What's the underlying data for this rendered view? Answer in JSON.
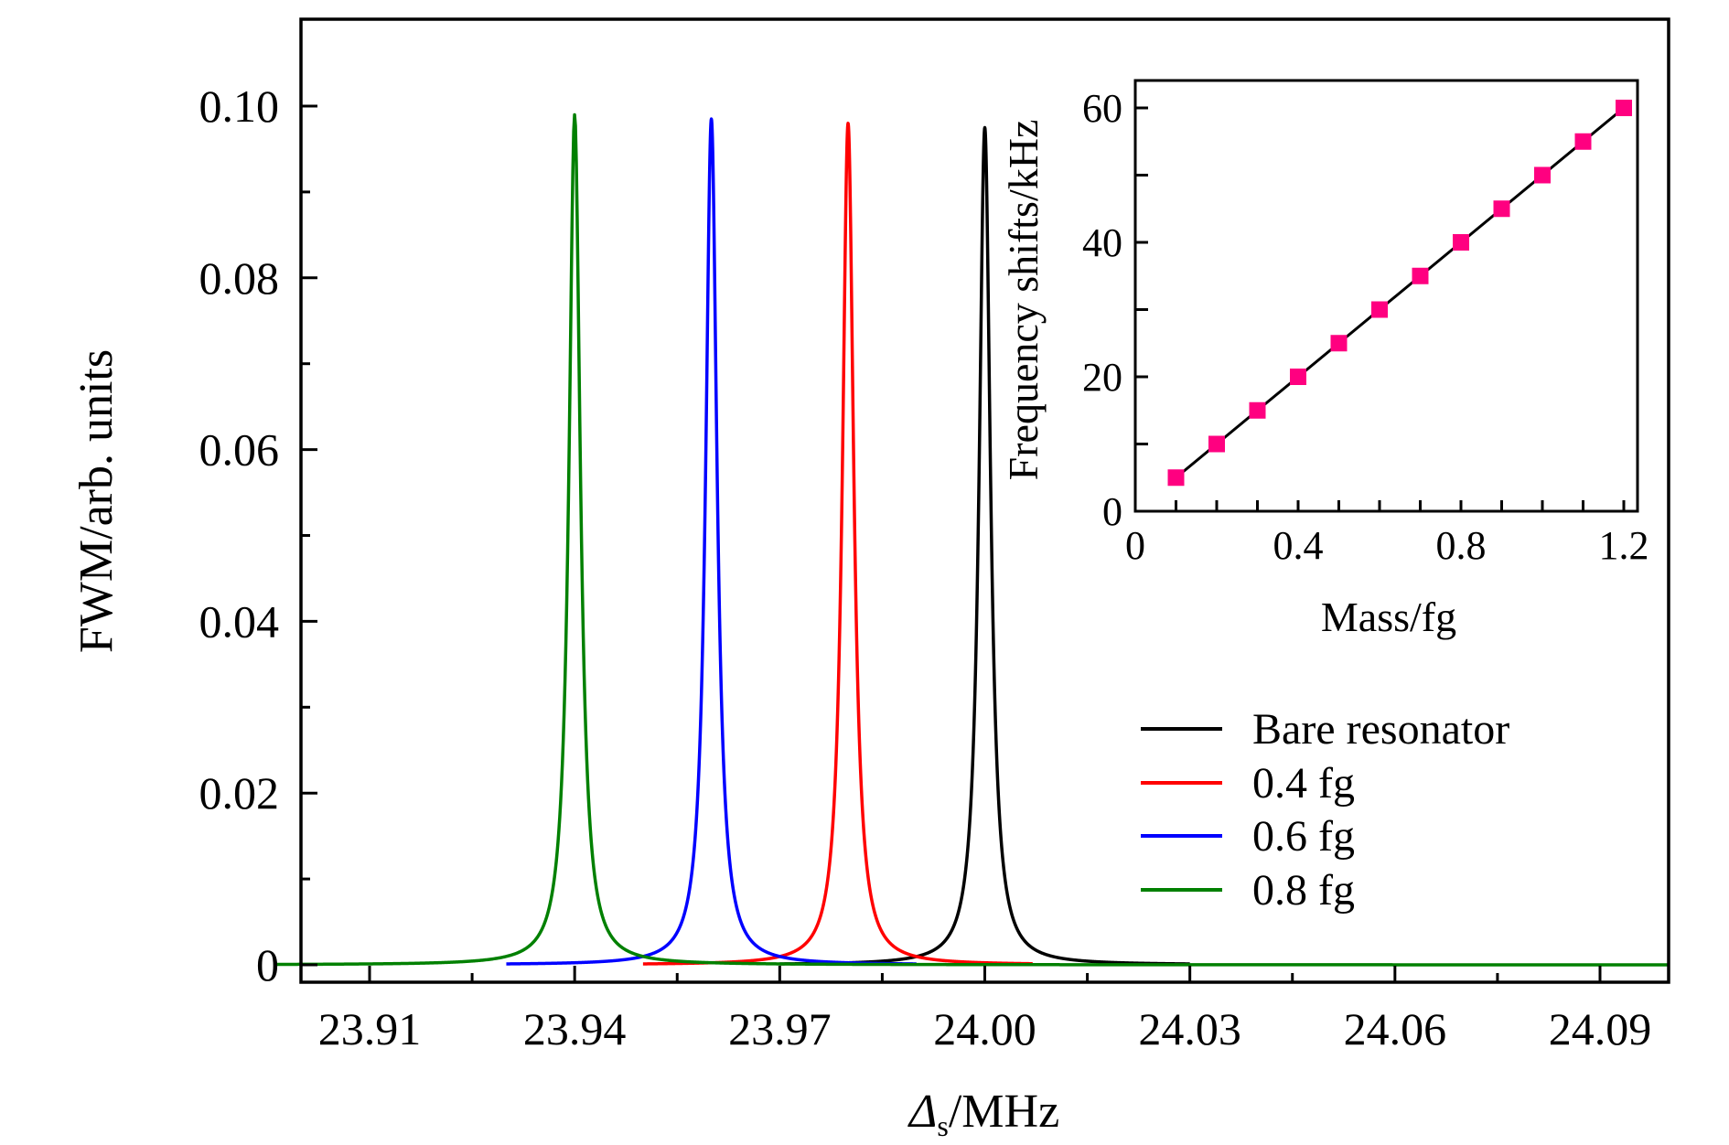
{
  "chart_data": [
    {
      "type": "line",
      "xlabel_symbol": "Δ",
      "xlabel_sub": "s",
      "xlabel_unit": "/MHz",
      "ylabel": "FWM/arb. units",
      "xlim": [
        23.893,
        24.1
      ],
      "ylim": [
        -0.002,
        0.11
      ],
      "x_ticks": [
        23.91,
        23.94,
        23.97,
        24.0,
        24.03,
        24.06,
        24.09
      ],
      "x_tick_labels": [
        "23.91",
        "23.94",
        "23.97",
        "24.00",
        "24.03",
        "24.06",
        "24.09"
      ],
      "y_ticks": [
        0,
        0.02,
        0.04,
        0.06,
        0.08,
        0.1
      ],
      "y_tick_labels": [
        "0",
        "0.02",
        "0.04",
        "0.06",
        "0.08",
        "0.10"
      ],
      "grid": false,
      "legend_position": "bottom-right",
      "series": [
        {
          "name": "Bare resonator",
          "color": "#000000",
          "center": 24.0,
          "peak": 0.0975,
          "halfwidth": 0.001,
          "x_range": [
            23.97,
            24.03
          ]
        },
        {
          "name": "0.4 fg",
          "color": "#ff0000",
          "center": 23.98,
          "peak": 0.098,
          "halfwidth": 0.001,
          "x_range": [
            23.95,
            24.007
          ]
        },
        {
          "name": "0.6 fg",
          "color": "#0000ff",
          "center": 23.96,
          "peak": 0.0985,
          "halfwidth": 0.001,
          "x_range": [
            23.93,
            23.99
          ]
        },
        {
          "name": "0.8 fg",
          "color": "#008000",
          "center": 23.94,
          "peak": 0.099,
          "halfwidth": 0.001,
          "x_range": [
            23.896,
            24.1
          ]
        }
      ]
    },
    {
      "type": "scatter",
      "xlabel": "Mass/fg",
      "ylabel": "Frequency shifts/kHz",
      "xlim": [
        0,
        1.24
      ],
      "ylim": [
        0,
        64
      ],
      "x_ticks": [
        0,
        0.4,
        0.8,
        1.2
      ],
      "x_tick_labels": [
        "0",
        "0.4",
        "0.8",
        "1.2"
      ],
      "y_ticks": [
        0,
        20,
        40,
        60
      ],
      "y_tick_labels": [
        "0",
        "20",
        "40",
        "60"
      ],
      "marker_color": "#ff0080",
      "line_color": "#000000",
      "x": [
        0.1,
        0.2,
        0.3,
        0.4,
        0.5,
        0.6,
        0.7,
        0.8,
        0.9,
        1.0,
        1.1,
        1.2
      ],
      "y": [
        5,
        10,
        15,
        20,
        25,
        30,
        35,
        40,
        45,
        50,
        55,
        60
      ]
    }
  ]
}
